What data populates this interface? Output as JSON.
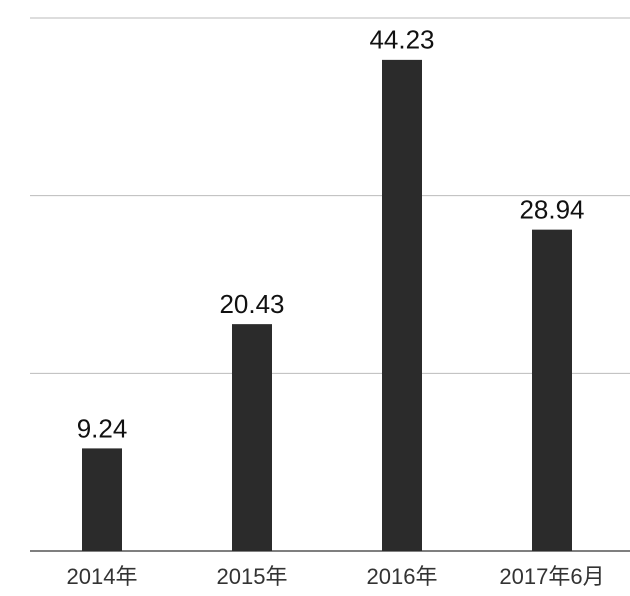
{
  "chart_data": {
    "type": "bar",
    "categories": [
      "2014年",
      "2015年",
      "2016年",
      "2017年6月"
    ],
    "values": [
      9.24,
      20.43,
      44.23,
      28.94
    ],
    "color": "#2b2b2b",
    "ylim": [
      0,
      48
    ],
    "yticks": [
      0,
      16,
      32,
      48
    ],
    "grid": true
  }
}
